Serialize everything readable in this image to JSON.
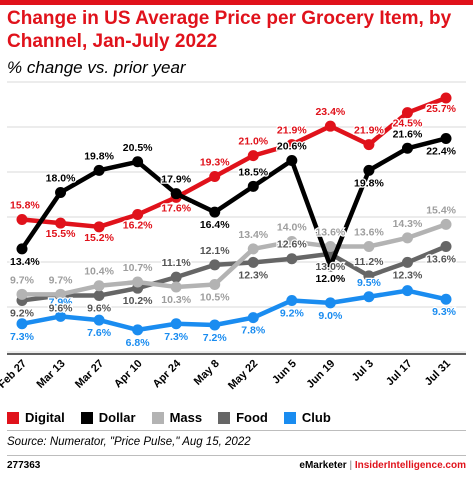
{
  "header": {
    "title": "Change in US Average Price per Grocery Item, by Channel, Jan-July 2022",
    "subtitle": "% change vs. prior year"
  },
  "footer": {
    "source": "Source: Numerator, \"Price Pulse,\" Aug 15, 2022",
    "chart_id": "277363",
    "brand_emarketer": "eMarketer",
    "brand_separator": "|",
    "brand_ii": "InsiderIntelligence.com"
  },
  "chart_data": {
    "type": "line",
    "title": "Change in US Average Price per Grocery Item, by Channel, Jan-July 2022",
    "subtitle": "% change vs. prior year",
    "categories": [
      "Feb 27",
      "Mar 13",
      "Mar 27",
      "Apr 10",
      "Apr 24",
      "May 8",
      "May 22",
      "Jun 5",
      "Jun 19",
      "Jul 3",
      "Jul 17",
      "Jul 31"
    ],
    "unit": "%",
    "ylim": [
      5,
      27
    ],
    "grid": "horizontal",
    "legend_position": "bottom",
    "series": [
      {
        "name": "Digital",
        "color": "#e0121b",
        "values": [
          15.8,
          15.5,
          15.2,
          16.2,
          17.6,
          19.3,
          21.0,
          21.9,
          23.4,
          21.9,
          24.5,
          25.7
        ]
      },
      {
        "name": "Dollar",
        "color": "#000000",
        "values": [
          13.4,
          18.0,
          19.8,
          20.5,
          17.9,
          16.4,
          18.5,
          20.6,
          12.0,
          19.8,
          21.6,
          22.4
        ]
      },
      {
        "name": "Mass",
        "color": "#b3b3b3",
        "values": [
          9.7,
          9.7,
          10.4,
          10.7,
          10.3,
          10.5,
          13.4,
          14.0,
          13.6,
          13.6,
          14.3,
          15.4
        ]
      },
      {
        "name": "Food",
        "color": "#666666",
        "values": [
          9.2,
          9.6,
          9.6,
          10.2,
          11.1,
          12.1,
          12.3,
          12.6,
          13.0,
          11.2,
          12.3,
          13.6
        ]
      },
      {
        "name": "Club",
        "color": "#1a8cf0",
        "values": [
          7.3,
          7.9,
          7.6,
          6.8,
          7.3,
          7.2,
          7.8,
          9.2,
          9.0,
          9.5,
          10.0,
          9.3
        ]
      }
    ]
  }
}
